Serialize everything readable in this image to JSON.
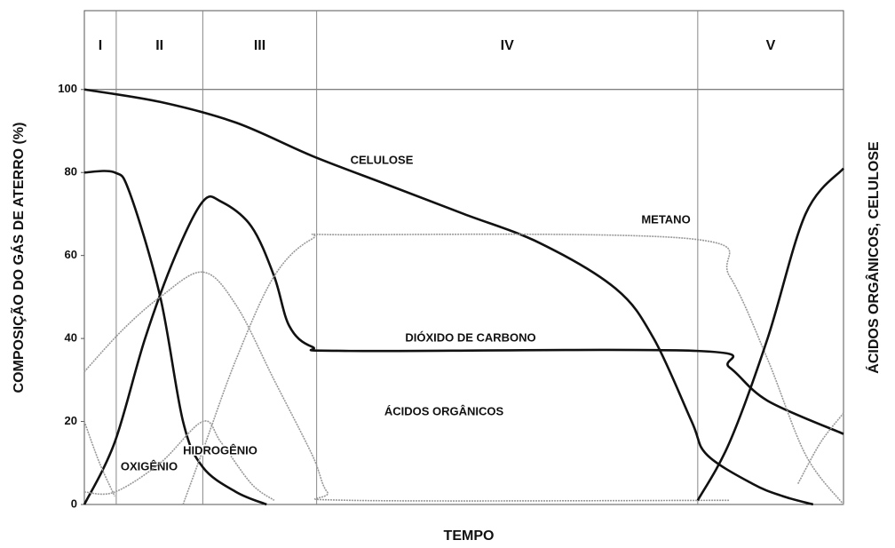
{
  "chart_data": {
    "type": "line",
    "xlabel": "TEMPO",
    "ylabel": "COMPOSIÇÃO DO GÁS DE ATERRO (%)",
    "y2label": "ÁCIDOS ORGÂNICOS, CELULOSE",
    "phases": [
      "I",
      "II",
      "III",
      "IV",
      "V"
    ],
    "phase_bounds": [
      4.2,
      15.6,
      30.6,
      80.8
    ],
    "xlim": [
      0,
      100
    ],
    "ylim": [
      0,
      119
    ],
    "yticks": [
      0,
      20,
      40,
      60,
      80,
      100
    ],
    "series": [
      {
        "name": "CELULOSE",
        "color": "#111111",
        "x": [
          0,
          10,
          20,
          30,
          40,
          50,
          60,
          70,
          75,
          80,
          82,
          88,
          92,
          96
        ],
        "values": [
          100,
          97,
          92,
          84,
          77,
          70,
          63,
          52,
          40,
          20,
          12,
          5,
          2,
          0
        ]
      },
      {
        "name": "DIÓXIDO DE CARBONO",
        "color": "#111111",
        "x": [
          0,
          4,
          8,
          12,
          15.6,
          18,
          22,
          25,
          27,
          30,
          35,
          80.8,
          85,
          90,
          100
        ],
        "values": [
          0,
          15,
          40,
          60,
          73,
          73,
          67,
          55,
          43,
          38,
          37,
          37,
          33,
          25,
          17
        ]
      },
      {
        "name": "OXIGÊNIO",
        "color": "#111111",
        "x": [
          0,
          4,
          6,
          10,
          13,
          15.6,
          20,
          24
        ],
        "values": [
          80,
          80,
          75,
          50,
          20,
          9,
          3,
          0
        ]
      },
      {
        "name": "METANO",
        "color": "#999999",
        "x": [
          13,
          16,
          20,
          25,
          30,
          35,
          80,
          85,
          90,
          95,
          100
        ],
        "values": [
          0,
          15,
          35,
          55,
          64,
          65,
          64,
          55,
          35,
          12,
          0
        ]
      },
      {
        "name": "ÁCIDOS ORGÂNICOS",
        "color": "#999999",
        "x": [
          0,
          5,
          10,
          15.6,
          20,
          25,
          30,
          32,
          35,
          85
        ],
        "values": [
          32,
          42,
          50,
          56,
          48,
          30,
          12,
          3,
          1,
          1
        ]
      },
      {
        "name": "HIDROGÊNIO",
        "color": "#999999",
        "x": [
          0,
          4,
          10,
          15.6,
          18,
          22,
          25
        ],
        "values": [
          3,
          3,
          10,
          20,
          15,
          5,
          1
        ]
      },
      {
        "color": "#999999",
        "x": [
          0,
          2,
          4
        ],
        "values": [
          20,
          10,
          2
        ]
      },
      {
        "color": "#999999",
        "x": [
          94,
          97,
          100
        ],
        "values": [
          5,
          15,
          22
        ]
      },
      {
        "color": "#111111",
        "x": [
          80.8,
          85,
          90,
          95,
          100
        ],
        "values": [
          1,
          15,
          40,
          70,
          81
        ]
      }
    ]
  }
}
